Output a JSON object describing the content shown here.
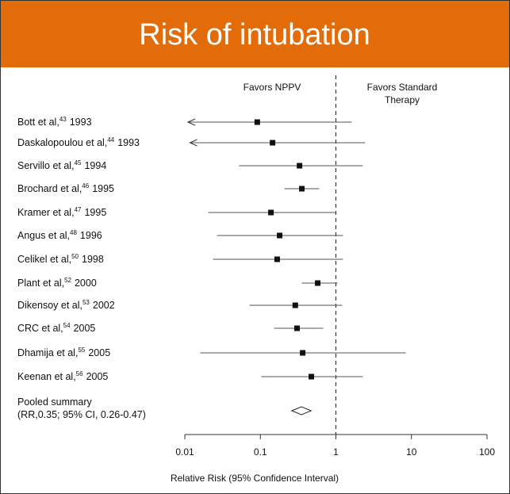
{
  "chart_data": {
    "type": "forest",
    "title": "Risk of intubation",
    "favors_left": "Favors NPPV",
    "favors_right": [
      "Favors Standard",
      "Therapy"
    ],
    "x_label": "Relative Risk (95% Confidence Interval)",
    "log_x": true,
    "xlim": [
      0.01,
      100
    ],
    "xticks": [
      0.01,
      0.1,
      1,
      10,
      100
    ],
    "reference_line": 1,
    "header_color": "#e36c0a",
    "mark_color": "#111111",
    "studies": [
      {
        "name": "Bott et al,",
        "ref": "43",
        "year": "1993",
        "value": 0.091,
        "lower": 0.011,
        "upper": 1.62,
        "arrow_left": true
      },
      {
        "name": "Daskalopoulou et al,",
        "ref": "44",
        "year": "1993",
        "value": 0.145,
        "lower": 0.0117,
        "upper": 2.44,
        "arrow_left": true
      },
      {
        "name": "Servillo et al,",
        "ref": "45",
        "year": "1994",
        "value": 0.33,
        "lower": 0.052,
        "upper": 2.27
      },
      {
        "name": "Brochard et al,",
        "ref": "46",
        "year": "1995",
        "value": 0.354,
        "lower": 0.208,
        "upper": 0.6
      },
      {
        "name": "Kramer et al,",
        "ref": "47",
        "year": "1995",
        "value": 0.138,
        "lower": 0.0204,
        "upper": 1.0
      },
      {
        "name": "Angus et al,",
        "ref": "48",
        "year": "1996",
        "value": 0.18,
        "lower": 0.0267,
        "upper": 1.24
      },
      {
        "name": "Celikel et al,",
        "ref": "50",
        "year": "1998",
        "value": 0.167,
        "lower": 0.0236,
        "upper": 1.24
      },
      {
        "name": "Plant et al,",
        "ref": "52",
        "year": "2000",
        "value": 0.574,
        "lower": 0.354,
        "upper": 1.05
      },
      {
        "name": "Dikensoy et al,",
        "ref": "53",
        "year": "2002",
        "value": 0.29,
        "lower": 0.0718,
        "upper": 1.21
      },
      {
        "name": "CRC et al,",
        "ref": "54",
        "year": "2005",
        "value": 0.306,
        "lower": 0.152,
        "upper": 0.68
      },
      {
        "name": "Dhamija et al,",
        "ref": "55",
        "year": "2005",
        "value": 0.363,
        "lower": 0.016,
        "upper": 8.4
      },
      {
        "name": "Keenan et al,",
        "ref": "56",
        "year": "2005",
        "value": 0.473,
        "lower": 0.103,
        "upper": 2.27
      }
    ],
    "pooled": {
      "label": [
        "Pooled summary",
        "(RR,0.35; 95% CI, 0.26-0.47)"
      ],
      "value": 0.35,
      "lower": 0.26,
      "upper": 0.47
    }
  }
}
